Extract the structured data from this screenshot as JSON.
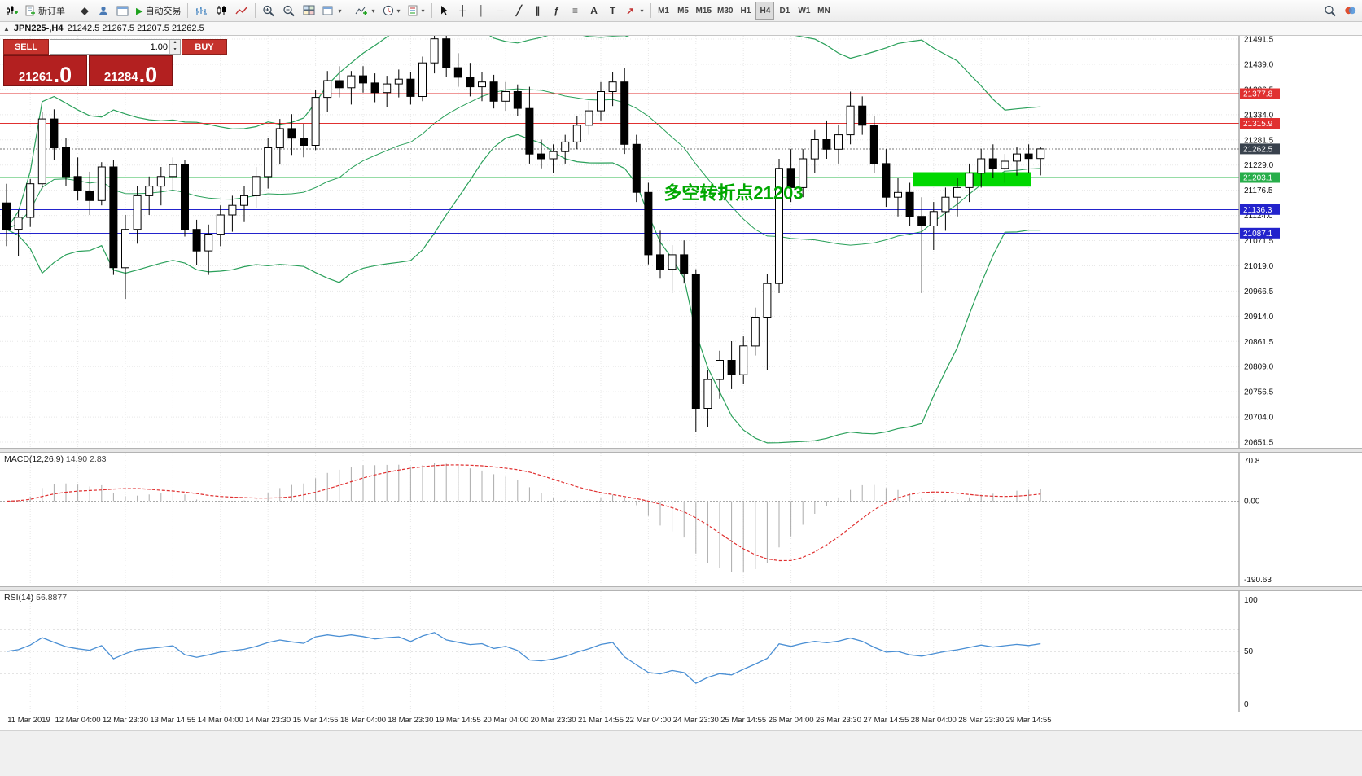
{
  "toolbar": {
    "new_order_label": "新订单",
    "autotrading_label": "自动交易",
    "timeframes": [
      "M1",
      "M5",
      "M15",
      "M30",
      "H1",
      "H4",
      "D1",
      "W1",
      "MN"
    ],
    "active_timeframe": "H4"
  },
  "icons": {
    "collapse": "▲",
    "dropdown": "▾",
    "mql5": "◆",
    "autoplay": "▶",
    "crosshair": "┼",
    "vline": "│",
    "hline": "─",
    "trendline": "╱",
    "channel": "∥",
    "fibonacci": "ƒ",
    "levels": "≡",
    "text": "A",
    "label": "T",
    "spin_up": "▴",
    "spin_down": "▾"
  },
  "chart": {
    "title": "JPN225-,H4",
    "ohlc_display": "21242.5 21267.5 21207.5 21262.5",
    "price_axis": [
      "21491.5",
      "21439.0",
      "21386.5",
      "21334.0",
      "21281.5",
      "21229.0",
      "21176.5",
      "21124.0",
      "21071.5",
      "21019.0",
      "20966.5",
      "20914.0",
      "20861.5",
      "20809.0",
      "20756.5",
      "20704.0",
      "20651.5"
    ],
    "time_axis": [
      "11 Mar 2019",
      "12 Mar 04:00",
      "12 Mar 23:30",
      "13 Mar 14:55",
      "14 Mar 04:00",
      "14 Mar 23:30",
      "15 Mar 14:55",
      "18 Mar 04:00",
      "18 Mar 23:30",
      "19 Mar 14:55",
      "20 Mar 04:00",
      "20 Mar 23:30",
      "21 Mar 14:55",
      "22 Mar 04:00",
      "24 Mar 23:30",
      "25 Mar 14:55",
      "26 Mar 04:00",
      "26 Mar 23:30",
      "27 Mar 14:55",
      "28 Mar 04:00",
      "28 Mar 23:30",
      "29 Mar 14:55"
    ],
    "lines": [
      {
        "price": 21377.8,
        "label": "21377.8",
        "color": "#e03030",
        "badge": "#e03030",
        "style": "solid"
      },
      {
        "price": 21315.9,
        "label": "21315.9",
        "color": "#e03030",
        "badge": "#e03030",
        "style": "solid"
      },
      {
        "price": 21262.5,
        "label": "21262.5",
        "color": "#777777",
        "badge": "#39424d",
        "style": "dotted"
      },
      {
        "price": 21203.1,
        "label": "21203.1",
        "color": "#2db84d",
        "badge": "#27ae4a",
        "style": "solid"
      },
      {
        "price": 21136.3,
        "label": "21136.3",
        "color": "#2323cc",
        "badge": "#2323cc",
        "style": "solid"
      },
      {
        "price": 21087.1,
        "label": "21087.1",
        "color": "#2323cc",
        "badge": "#2323cc",
        "style": "solid"
      }
    ],
    "annotation": {
      "text": "多空转折点21203",
      "color": "#00a800",
      "x_candle": 55.3,
      "price": 21158
    },
    "highlight_rect": {
      "from_candle": 76.3,
      "to_candle": 86.2,
      "price_top": 21214,
      "price_bottom": 21184,
      "color": "#00d800"
    },
    "bollinger": {
      "period": 20,
      "deviation": 2,
      "color": "#2aa05a"
    },
    "candles": [
      [
        21150,
        21190,
        21060,
        21095
      ],
      [
        21095,
        21135,
        21040,
        21120
      ],
      [
        21120,
        21200,
        21100,
        21190
      ],
      [
        21190,
        21340,
        21180,
        21325
      ],
      [
        21325,
        21345,
        21240,
        21265
      ],
      [
        21265,
        21285,
        21185,
        21205
      ],
      [
        21205,
        21245,
        21155,
        21175
      ],
      [
        21175,
        21215,
        21125,
        21155
      ],
      [
        21155,
        21235,
        21145,
        21225
      ],
      [
        21225,
        21240,
        21000,
        21015
      ],
      [
        21015,
        21125,
        20950,
        21095
      ],
      [
        21095,
        21185,
        21065,
        21165
      ],
      [
        21165,
        21205,
        21125,
        21185
      ],
      [
        21185,
        21225,
        21145,
        21205
      ],
      [
        21205,
        21245,
        21175,
        21230
      ],
      [
        21230,
        21240,
        21080,
        21095
      ],
      [
        21095,
        21115,
        21020,
        21050
      ],
      [
        21050,
        21105,
        21000,
        21085
      ],
      [
        21085,
        21145,
        21060,
        21125
      ],
      [
        21125,
        21165,
        21090,
        21145
      ],
      [
        21145,
        21185,
        21110,
        21165
      ],
      [
        21165,
        21225,
        21140,
        21205
      ],
      [
        21205,
        21285,
        21180,
        21265
      ],
      [
        21265,
        21325,
        21230,
        21305
      ],
      [
        21305,
        21335,
        21250,
        21285
      ],
      [
        21285,
        21315,
        21245,
        21270
      ],
      [
        21270,
        21385,
        21260,
        21370
      ],
      [
        21370,
        21425,
        21340,
        21405
      ],
      [
        21405,
        21435,
        21370,
        21390
      ],
      [
        21390,
        21425,
        21355,
        21415
      ],
      [
        21415,
        21435,
        21380,
        21400
      ],
      [
        21400,
        21420,
        21360,
        21380
      ],
      [
        21380,
        21415,
        21350,
        21398
      ],
      [
        21398,
        21428,
        21370,
        21408
      ],
      [
        21408,
        21422,
        21355,
        21372
      ],
      [
        21372,
        21455,
        21362,
        21442
      ],
      [
        21442,
        21505,
        21420,
        21492
      ],
      [
        21492,
        21502,
        21412,
        21432
      ],
      [
        21432,
        21462,
        21392,
        21412
      ],
      [
        21412,
        21442,
        21372,
        21392
      ],
      [
        21392,
        21422,
        21362,
        21402
      ],
      [
        21402,
        21417,
        21347,
        21362
      ],
      [
        21362,
        21402,
        21342,
        21382
      ],
      [
        21382,
        21397,
        21332,
        21347
      ],
      [
        21347,
        21392,
        21232,
        21252
      ],
      [
        21252,
        21282,
        21222,
        21242
      ],
      [
        21242,
        21272,
        21212,
        21257
      ],
      [
        21257,
        21292,
        21232,
        21277
      ],
      [
        21277,
        21332,
        21262,
        21312
      ],
      [
        21312,
        21362,
        21292,
        21342
      ],
      [
        21342,
        21402,
        21322,
        21382
      ],
      [
        21382,
        21422,
        21352,
        21402
      ],
      [
        21402,
        21432,
        21252,
        21272
      ],
      [
        21272,
        21292,
        21152,
        21172
      ],
      [
        21172,
        21192,
        21022,
        21042
      ],
      [
        21042,
        21092,
        20992,
        21012
      ],
      [
        21012,
        21062,
        20962,
        21042
      ],
      [
        21042,
        21072,
        20982,
        21002
      ],
      [
        21002,
        21012,
        20672,
        20722
      ],
      [
        20722,
        20802,
        20682,
        20782
      ],
      [
        20782,
        20842,
        20742,
        20822
      ],
      [
        20822,
        20862,
        20762,
        20792
      ],
      [
        20792,
        20872,
        20772,
        20852
      ],
      [
        20852,
        20932,
        20832,
        20912
      ],
      [
        20912,
        21002,
        20802,
        20982
      ],
      [
        20982,
        21242,
        20962,
        21222
      ],
      [
        21222,
        21262,
        21152,
        21182
      ],
      [
        21182,
        21262,
        21162,
        21242
      ],
      [
        21242,
        21302,
        21212,
        21282
      ],
      [
        21282,
        21322,
        21242,
        21262
      ],
      [
        21262,
        21312,
        21232,
        21292
      ],
      [
        21292,
        21382,
        21272,
        21352
      ],
      [
        21352,
        21372,
        21292,
        21312
      ],
      [
        21312,
        21332,
        21212,
        21232
      ],
      [
        21232,
        21262,
        21142,
        21162
      ],
      [
        21162,
        21202,
        21122,
        21172
      ],
      [
        21172,
        21192,
        21102,
        21122
      ],
      [
        21122,
        21162,
        20962,
        21102
      ],
      [
        21102,
        21152,
        21052,
        21132
      ],
      [
        21132,
        21182,
        21092,
        21162
      ],
      [
        21162,
        21202,
        21122,
        21182
      ],
      [
        21182,
        21232,
        21152,
        21212
      ],
      [
        21212,
        21262,
        21182,
        21242
      ],
      [
        21242,
        21272,
        21202,
        21222
      ],
      [
        21222,
        21252,
        21192,
        21237
      ],
      [
        21237,
        21267,
        21207,
        21252
      ],
      [
        21252,
        21272,
        21212,
        21242.5
      ],
      [
        21242.5,
        21267.5,
        21207.5,
        21262.5
      ]
    ]
  },
  "trade_panel": {
    "sell_label": "SELL",
    "buy_label": "BUY",
    "volume": "1.00",
    "sell_price_main": "21261",
    "sell_price_dec": ".0",
    "buy_price_main": "21284",
    "buy_price_dec": ".0",
    "color": "#b32020"
  },
  "macd": {
    "label": "MACD(12,26,9)",
    "values": "14.90 2.83",
    "axis": [
      "70.8",
      "0.00",
      "-190.63"
    ],
    "histogram_color": "#ababab",
    "signal_color": "#e03030"
  },
  "rsi": {
    "label": "RSI(14)",
    "value": "56.8877",
    "axis": [
      "100",
      "50",
      "0"
    ],
    "line_color": "#4a8fd4"
  }
}
